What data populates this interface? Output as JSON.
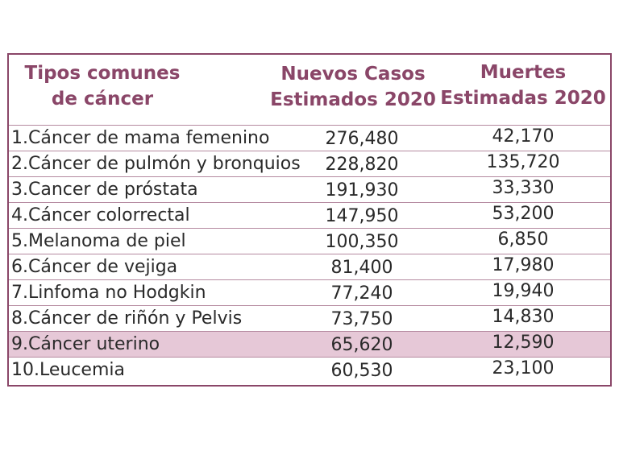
{
  "headers": [
    [
      "Tipos comunes",
      "de cáncer"
    ],
    [
      "Nuevos Casos",
      "Estimados 2020"
    ],
    [
      "Muertes",
      "Estimadas 2020"
    ]
  ],
  "rows": [
    {
      "type": "1.Cáncer de mama femenino",
      "new_cases": "276,480",
      "deaths": "42,170"
    },
    {
      "type": "2.Cáncer de pulmón y bronquios",
      "new_cases": "228,820",
      "deaths": "135,720"
    },
    {
      "type": "3.Cancer de próstata",
      "new_cases": "191,930",
      "deaths": "33,330"
    },
    {
      "type": "4.Cáncer colorrectal",
      "new_cases": "147,950",
      "deaths": "53,200"
    },
    {
      "type": "5.Melanoma de piel",
      "new_cases": "100,350",
      "deaths": "6,850"
    },
    {
      "type": "6.Cáncer de vejiga",
      "new_cases": "81,400",
      "deaths": "17,980"
    },
    {
      "type": "7.Linfoma no Hodgkin",
      "new_cases": "77,240",
      "deaths": "19,940"
    },
    {
      "type": "8.Cáncer de riñón y Pelvis",
      "new_cases": "73,750",
      "deaths": "14,830"
    },
    {
      "type": "9.Cáncer uterino",
      "new_cases": "65,620",
      "deaths": "12,590",
      "highlighted": true
    },
    {
      "type": "10.Leucemia",
      "new_cases": "60,530",
      "deaths": "23,100"
    }
  ],
  "colors": {
    "header_text": "#8a4668",
    "border": "#8a4668",
    "highlight_row": "#e6c8d7"
  }
}
